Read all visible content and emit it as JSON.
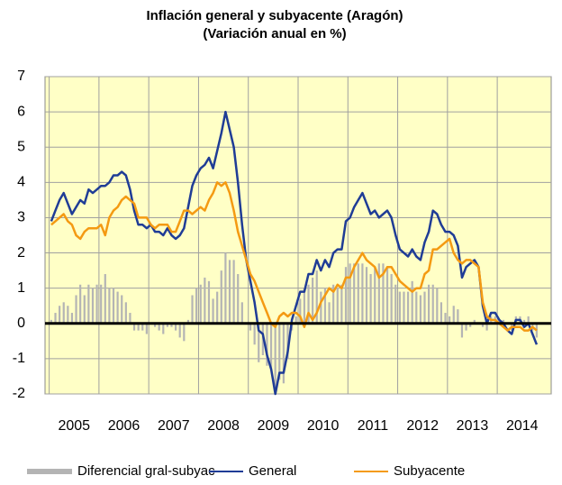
{
  "chart_data": {
    "type": "combo",
    "title": "Inflación general y subyacente (Aragón)",
    "subtitle": "(Variación anual en %)",
    "categories": [
      null,
      null,
      null,
      null,
      null,
      null,
      "2005",
      null,
      null,
      null,
      null,
      null,
      null,
      null,
      null,
      null,
      null,
      null,
      "2006",
      null,
      null,
      null,
      null,
      null,
      null,
      null,
      null,
      null,
      null,
      null,
      "2007",
      null,
      null,
      null,
      null,
      null,
      null,
      null,
      null,
      null,
      null,
      null,
      "2008",
      null,
      null,
      null,
      null,
      null,
      null,
      null,
      null,
      null,
      null,
      null,
      "2009",
      null,
      null,
      null,
      null,
      null,
      null,
      null,
      null,
      null,
      null,
      null,
      "2010",
      null,
      null,
      null,
      null,
      null,
      null,
      null,
      null,
      null,
      null,
      null,
      "2011",
      null,
      null,
      null,
      null,
      null,
      null,
      null,
      null,
      null,
      null,
      null,
      "2012",
      null,
      null,
      null,
      null,
      null,
      null,
      null,
      null,
      null,
      null,
      null,
      "2013",
      null,
      null,
      null,
      null,
      null,
      null,
      null,
      null,
      null,
      null,
      null,
      "2014",
      null,
      null,
      null,
      null,
      null
    ],
    "ylim": [
      -2,
      7
    ],
    "yticks": [
      -2,
      -1,
      0,
      1,
      2,
      3,
      4,
      5,
      6,
      7
    ],
    "grid": true,
    "legend": "bottom",
    "series": [
      {
        "name": "Diferencial gral-subyac",
        "kind": "bar",
        "color": "#b4b4b4",
        "values": [
          0.1,
          0.3,
          0.5,
          0.6,
          0.5,
          0.3,
          0.8,
          1.1,
          0.8,
          1.1,
          1.0,
          1.1,
          1.1,
          1.4,
          1.0,
          1.0,
          0.9,
          0.8,
          0.6,
          0.3,
          -0.2,
          -0.2,
          -0.2,
          -0.3,
          0.0,
          -0.1,
          -0.2,
          -0.3,
          -0.1,
          -0.1,
          -0.2,
          -0.4,
          -0.5,
          0.1,
          0.8,
          1.0,
          1.1,
          1.3,
          1.2,
          0.7,
          0.9,
          1.5,
          2.0,
          1.8,
          1.8,
          1.4,
          0.6,
          0.0,
          -0.2,
          -0.6,
          -1.1,
          -0.9,
          -1.2,
          -1.3,
          -1.9,
          -1.6,
          -1.7,
          -1.0,
          -0.2,
          0.2,
          0.7,
          1.0,
          1.1,
          1.3,
          1.5,
          0.9,
          1.0,
          0.6,
          1.1,
          1.0,
          1.1,
          1.6,
          1.7,
          1.7,
          1.7,
          1.7,
          1.6,
          1.4,
          1.6,
          1.7,
          1.7,
          1.6,
          1.4,
          1.1,
          0.9,
          0.9,
          0.9,
          1.2,
          0.9,
          0.8,
          0.9,
          1.1,
          1.1,
          1.0,
          0.6,
          0.3,
          0.2,
          0.5,
          0.4,
          -0.4,
          -0.2,
          -0.1,
          0.1,
          0.0,
          -0.1,
          -0.2,
          0.2,
          0.2,
          0.1,
          0.1,
          0.0,
          -0.2,
          0.2,
          0.2,
          0.1,
          0.2,
          -0.2,
          -0.4,
          null,
          null
        ]
      },
      {
        "name": "General",
        "kind": "line",
        "color": "#1f3c96",
        "values": [
          2.9,
          3.2,
          3.5,
          3.7,
          3.4,
          3.1,
          3.3,
          3.5,
          3.4,
          3.8,
          3.7,
          3.8,
          3.9,
          3.9,
          4.0,
          4.2,
          4.2,
          4.3,
          4.2,
          3.8,
          3.2,
          2.8,
          2.8,
          2.7,
          2.8,
          2.6,
          2.6,
          2.5,
          2.7,
          2.5,
          2.4,
          2.5,
          2.7,
          3.3,
          3.9,
          4.2,
          4.4,
          4.5,
          4.7,
          4.4,
          4.9,
          5.4,
          6.0,
          5.5,
          5.0,
          4.0,
          2.8,
          1.8,
          1.2,
          0.6,
          -0.2,
          -0.3,
          -0.9,
          -1.3,
          -2.0,
          -1.4,
          -1.4,
          -0.8,
          0.1,
          0.5,
          0.9,
          0.9,
          1.4,
          1.4,
          1.8,
          1.5,
          1.8,
          1.6,
          2.0,
          2.1,
          2.1,
          2.9,
          3.0,
          3.3,
          3.5,
          3.7,
          3.4,
          3.1,
          3.2,
          3.0,
          3.1,
          3.2,
          3.0,
          2.5,
          2.1,
          2.0,
          1.9,
          2.1,
          1.9,
          1.8,
          2.3,
          2.6,
          3.2,
          3.1,
          2.8,
          2.6,
          2.6,
          2.5,
          2.2,
          1.3,
          1.6,
          1.7,
          1.8,
          1.6,
          0.5,
          0.0,
          0.3,
          0.3,
          0.1,
          0.0,
          -0.2,
          -0.3,
          0.1,
          0.1,
          -0.1,
          0.0,
          -0.3,
          -0.6,
          null,
          null
        ]
      },
      {
        "name": "Subyacente",
        "kind": "line",
        "color": "#f49a12",
        "values": [
          2.8,
          2.9,
          3.0,
          3.1,
          2.9,
          2.8,
          2.5,
          2.4,
          2.6,
          2.7,
          2.7,
          2.7,
          2.8,
          2.5,
          3.0,
          3.2,
          3.3,
          3.5,
          3.6,
          3.5,
          3.4,
          3.0,
          3.0,
          3.0,
          2.8,
          2.7,
          2.8,
          2.8,
          2.8,
          2.6,
          2.6,
          2.9,
          3.2,
          3.2,
          3.1,
          3.2,
          3.3,
          3.2,
          3.5,
          3.7,
          4.0,
          3.9,
          4.0,
          3.7,
          3.2,
          2.6,
          2.2,
          1.8,
          1.4,
          1.2,
          0.9,
          0.6,
          0.3,
          0.0,
          -0.1,
          0.2,
          0.3,
          0.2,
          0.3,
          0.3,
          0.2,
          -0.1,
          0.3,
          0.1,
          0.3,
          0.6,
          0.8,
          1.0,
          0.9,
          1.1,
          1.0,
          1.3,
          1.3,
          1.6,
          1.8,
          2.0,
          1.8,
          1.7,
          1.6,
          1.3,
          1.4,
          1.6,
          1.6,
          1.4,
          1.2,
          1.1,
          1.0,
          0.9,
          1.0,
          1.0,
          1.4,
          1.5,
          2.1,
          2.1,
          2.2,
          2.3,
          2.4,
          2.0,
          1.8,
          1.7,
          1.8,
          1.8,
          1.7,
          1.6,
          0.6,
          0.2,
          0.1,
          0.1,
          0.0,
          -0.1,
          -0.2,
          -0.1,
          -0.1,
          -0.1,
          -0.2,
          -0.2,
          -0.1,
          -0.2,
          null,
          null
        ]
      }
    ]
  }
}
